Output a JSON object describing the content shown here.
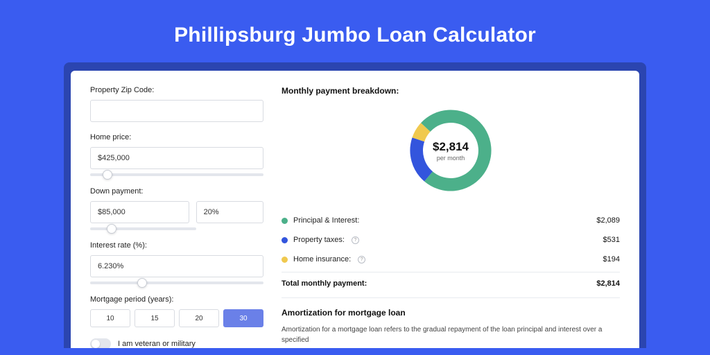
{
  "colors": {
    "page_bg": "#3a5cf0",
    "shadow_bg": "#2b45b0",
    "card_bg": "#ffffff",
    "border": "#d8dbe1",
    "track": "#e3e6ec",
    "active_btn": "#6a80e8"
  },
  "title": "Phillipsburg Jumbo Loan Calculator",
  "form": {
    "zip_label": "Property Zip Code:",
    "zip_value": "",
    "home_price_label": "Home price:",
    "home_price_value": "$425,000",
    "home_price_slider_pct": 10,
    "down_payment_label": "Down payment:",
    "down_payment_value": "$85,000",
    "down_payment_pct": "20%",
    "down_payment_slider_pct": 20,
    "interest_label": "Interest rate (%):",
    "interest_value": "6.230%",
    "interest_slider_pct": 30,
    "period_label": "Mortgage period (years):",
    "periods": [
      "10",
      "15",
      "20",
      "30"
    ],
    "period_active_index": 3,
    "veteran_label": "I am veteran or military",
    "veteran_on": false
  },
  "breakdown": {
    "title": "Monthly payment breakdown:",
    "donut": {
      "center_value": "$2,814",
      "center_sub": "per month",
      "slices": [
        {
          "label": "Principal & Interest:",
          "value": "$2,089",
          "color": "#4cb08a",
          "pct": 74.2,
          "has_info": false
        },
        {
          "label": "Property taxes:",
          "value": "$531",
          "color": "#3355dd",
          "pct": 18.9,
          "has_info": true
        },
        {
          "label": "Home insurance:",
          "value": "$194",
          "color": "#f0c94f",
          "pct": 6.9,
          "has_info": true
        }
      ]
    },
    "total_label": "Total monthly payment:",
    "total_value": "$2,814"
  },
  "amortization": {
    "title": "Amortization for mortgage loan",
    "text": "Amortization for a mortgage loan refers to the gradual repayment of the loan principal and interest over a specified"
  }
}
